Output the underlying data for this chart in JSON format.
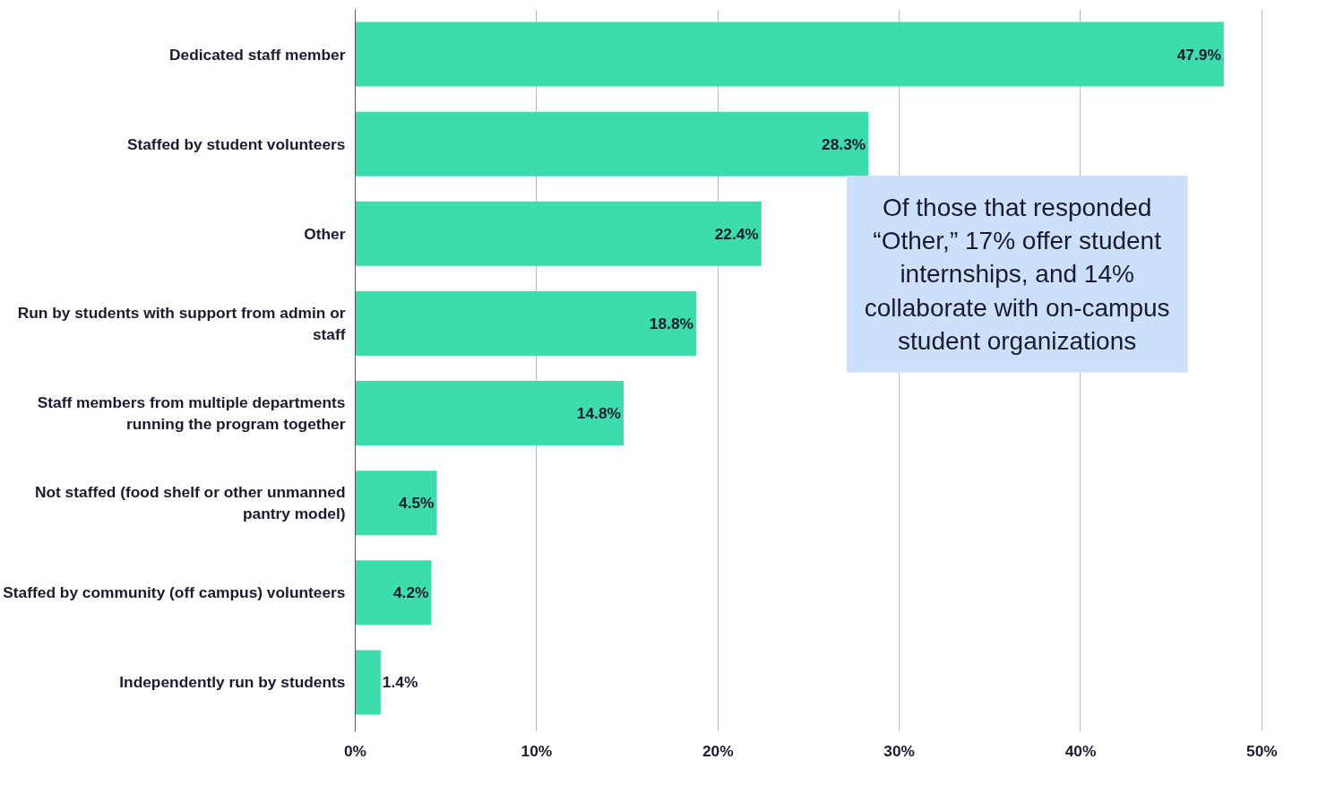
{
  "chart_data": {
    "type": "bar",
    "orientation": "horizontal",
    "categories": [
      "Dedicated staff member",
      "Staffed by student volunteers",
      "Other",
      "Run by students with support from admin or staff",
      "Staff members from multiple departments running the program together",
      "Not staffed (food shelf or other unmanned pantry model)",
      "Staffed by community (off campus) volunteers",
      "Independently run by students"
    ],
    "values": [
      47.9,
      28.3,
      22.4,
      18.8,
      14.8,
      4.5,
      4.2,
      1.4
    ],
    "color": "#3ddcac",
    "value_labels": [
      "47.9%",
      "28.3%",
      "22.4%",
      "18.8%",
      "14.8%",
      "4.5%",
      "4.2%",
      "1.4%"
    ],
    "xlim": [
      0,
      50
    ],
    "xticks": [
      {
        "value": 0,
        "label": "0%"
      },
      {
        "value": 10,
        "label": "10%"
      },
      {
        "value": 20,
        "label": "20%"
      },
      {
        "value": 30,
        "label": "30%"
      },
      {
        "value": 40,
        "label": "40%"
      },
      {
        "value": 50,
        "label": "50%"
      }
    ],
    "grid": "x",
    "annotations": [
      "Of those that responded “Other,” 17% offer student internships, and 14% collaborate with on-campus student organizations"
    ]
  }
}
